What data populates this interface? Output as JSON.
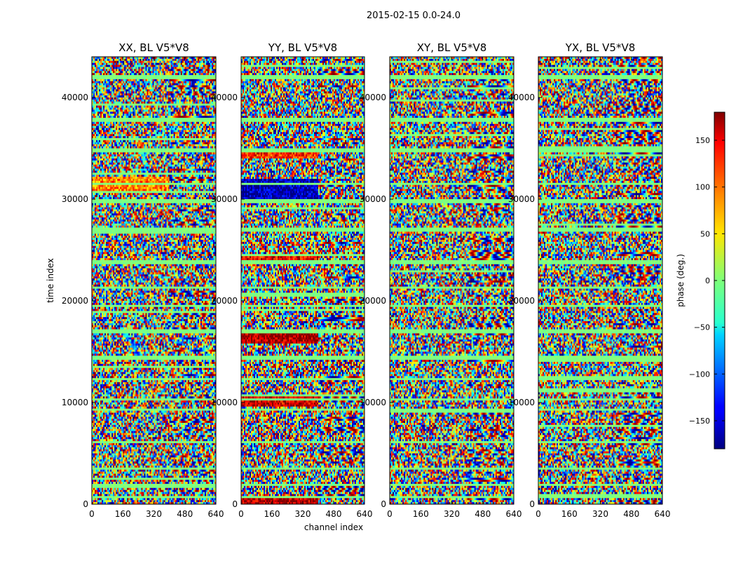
{
  "suptitle": "2015-02-15 0.0-24.0",
  "chart_data": {
    "type": "heatmap",
    "shared": {
      "xlabel": "channel index",
      "ylabel": "time index",
      "xlim": [
        0,
        640
      ],
      "ylim": [
        0,
        44000
      ],
      "xticks": [
        0,
        160,
        320,
        480,
        640
      ],
      "yticks": [
        0,
        10000,
        20000,
        30000,
        40000
      ],
      "xtick_labels": [
        "0",
        "160",
        "320",
        "480",
        "640"
      ],
      "ytick_labels": [
        "0",
        "10000",
        "20000",
        "30000",
        "40000"
      ]
    },
    "panels": [
      {
        "id": "xx",
        "title": "XX, BL V5*V8"
      },
      {
        "id": "yy",
        "title": "YY, BL V5*V8"
      },
      {
        "id": "xy",
        "title": "XY, BL V5*V8"
      },
      {
        "id": "yx",
        "title": "YX, BL V5*V8"
      }
    ],
    "colorbar": {
      "label": "phase (deg.)",
      "range": [
        -180,
        180
      ],
      "ticks": [
        -150,
        -100,
        -50,
        0,
        50,
        100,
        150
      ],
      "tick_labels": [
        "−150",
        "−100",
        "−50",
        "0",
        "50",
        "100",
        "150"
      ],
      "colormap": "jet"
    },
    "features": {
      "flagged_rows_time": [
        700,
        1900,
        3500,
        6100,
        9300,
        10300,
        12300,
        14400,
        17000,
        19500,
        21300,
        23800,
        27000,
        29800,
        31500,
        34800,
        37800,
        42000
      ],
      "band_split_channel": 400,
      "hot_bands_yy": [
        {
          "t0": 0,
          "t1": 700,
          "phase": 160
        },
        {
          "t0": 9700,
          "t1": 10500,
          "phase": 150
        },
        {
          "t0": 15800,
          "t1": 17000,
          "phase": 165
        },
        {
          "t0": 23800,
          "t1": 24500,
          "phase": 140
        },
        {
          "t0": 29600,
          "t1": 32000,
          "phase": -160
        },
        {
          "t0": 34000,
          "t1": 35000,
          "phase": 120
        }
      ],
      "warm_bands_xx": [
        {
          "t0": 30500,
          "t1": 32200,
          "phase": 90
        }
      ]
    }
  }
}
